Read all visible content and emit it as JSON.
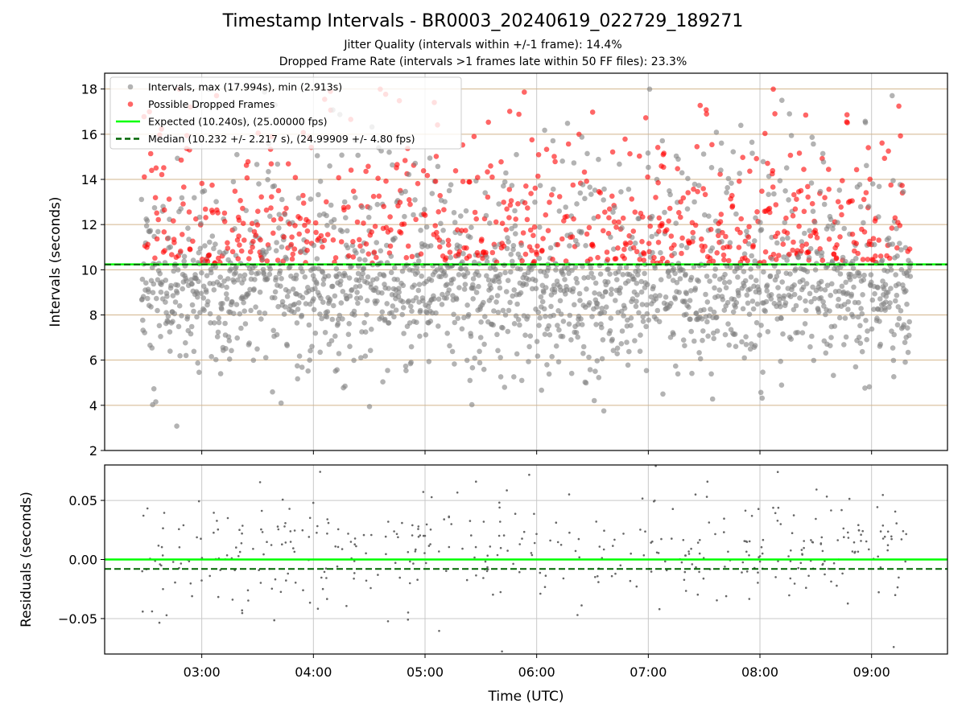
{
  "title": "Timestamp Intervals - BR0003_20240619_022729_189271",
  "subtitle_1": "Jitter Quality (intervals within +/-1 frame): 14.4%",
  "subtitle_2": "Dropped Frame Rate (intervals >1 frames late within 50 FF files): 23.3%",
  "colors": {
    "interval": "#808080",
    "dropped": "#ff0000",
    "expected": "#00ff00",
    "median": "#006400",
    "hgrid": "#d2b48c",
    "grid": "#c8c8c8"
  },
  "chart_data": [
    {
      "type": "scatter",
      "ylabel": "Intervals (seconds)",
      "ylim": [
        2,
        18.7
      ],
      "yticks": [
        "2",
        "4",
        "6",
        "8",
        "10",
        "12",
        "14",
        "16",
        "18"
      ],
      "ytick_values": [
        2,
        4,
        6,
        8,
        10,
        12,
        14,
        16,
        18
      ],
      "xlim_hours": [
        2.13,
        9.68
      ],
      "legend_position": "upper-left",
      "legend": [
        {
          "label": "Intervals, max (17.994s), min (2.913s)",
          "kind": "dot",
          "color": "#808080"
        },
        {
          "label": "Possible Dropped Frames",
          "kind": "dot",
          "color": "#ff0000"
        },
        {
          "label": "Expected (10.240s), (25.00000 fps)",
          "kind": "line",
          "color": "#00ff00"
        },
        {
          "label": "Median (10.232 +/- 2.217 s), (24.99909 +/- 4.80 fps)",
          "kind": "dash",
          "color": "#006400"
        }
      ],
      "expected": 10.24,
      "median": 10.232,
      "time_start_hours": 2.46,
      "time_end_hours": 9.35,
      "n_points": 2420,
      "interval_range": [
        2.913,
        17.994
      ],
      "dropped_threshold": 10.24
    },
    {
      "type": "scatter",
      "ylabel": "Residuals (seconds)",
      "ylim": [
        -0.08,
        0.08
      ],
      "yticks": [
        "0.05",
        "0.00",
        "−0.05"
      ],
      "ytick_values": [
        0.05,
        0.0,
        -0.05
      ],
      "expected": 0.0,
      "median": -0.008,
      "n_points": 420,
      "xlabel": "Time (UTC)",
      "xticks": [
        "03:00",
        "04:00",
        "05:00",
        "06:00",
        "07:00",
        "08:00",
        "09:00"
      ],
      "xtick_values": [
        3,
        4,
        5,
        6,
        7,
        8,
        9
      ]
    }
  ]
}
